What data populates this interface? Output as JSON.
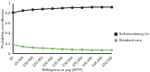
{
  "chart_data": {
    "type": "line",
    "x_label": "Willingness to pay (WTP)",
    "y_label": "Probability cost-effective",
    "categories": [
      "£0",
      "£5,000",
      "£10,000",
      "£15,000",
      "£20,000",
      "£25,000",
      "£30,000",
      "£35,000",
      "£40,000",
      "£45,000",
      "£50,000"
    ],
    "series": [
      {
        "name": "Self-monitoring OrangeDiet XI",
        "color": "#222222",
        "marker": "circle",
        "values": [
          0.82,
          0.86,
          0.88,
          0.89,
          0.9,
          0.91,
          0.92,
          0.92,
          0.93,
          0.93,
          0.93
        ]
      },
      {
        "name": "Standard care",
        "color": "#6ab04c",
        "marker": "square",
        "values": [
          0.18,
          0.14,
          0.12,
          0.11,
          0.1,
          0.09,
          0.08,
          0.08,
          0.07,
          0.07,
          0.07
        ]
      }
    ],
    "ylim": [
      0,
      1
    ],
    "yticks": [
      0,
      0.2,
      0.4,
      0.6,
      0.8,
      1
    ],
    "grid": false,
    "legend": "right"
  }
}
